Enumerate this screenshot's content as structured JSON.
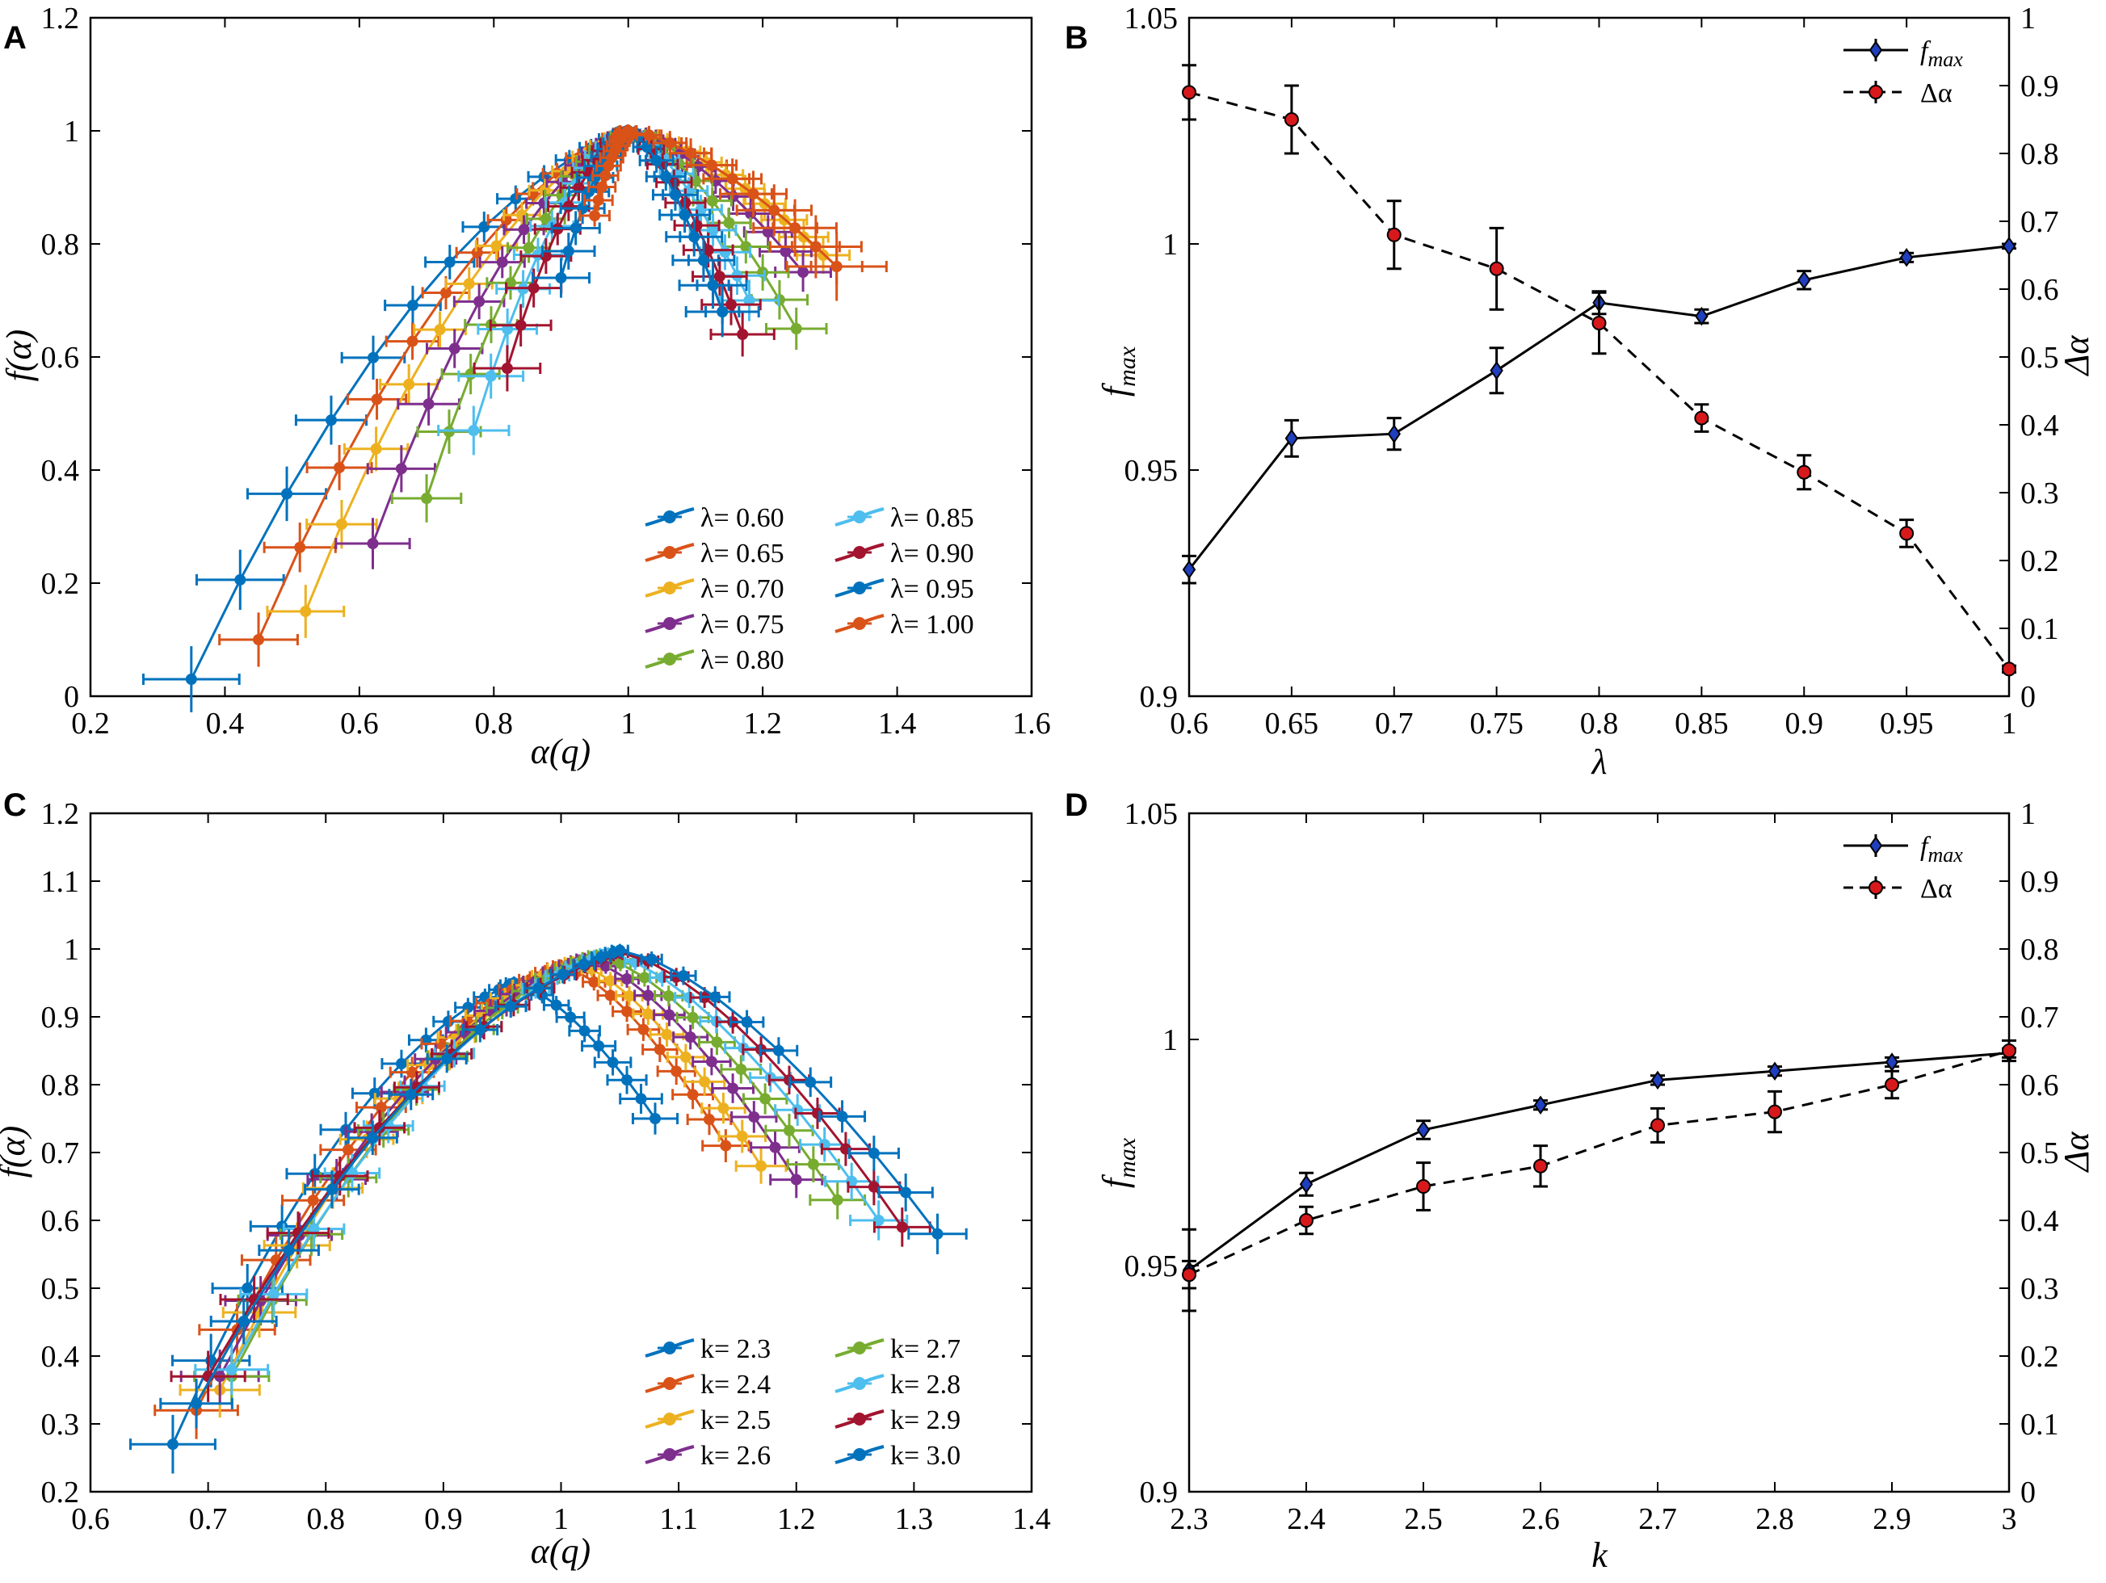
{
  "chart_data": [
    {
      "panel": "A",
      "type": "line",
      "xlabel": "α(q)",
      "ylabel": "f(α)",
      "xlim": [
        0.2,
        1.6
      ],
      "ylim": [
        0,
        1.2
      ],
      "xticks": [
        "0.2",
        "0.4",
        "0.6",
        "0.8",
        "1",
        "1.2",
        "1.4",
        "1.6"
      ],
      "yticks": [
        "0",
        "0.2",
        "0.4",
        "0.6",
        "0.8",
        "1",
        "1.2"
      ],
      "legend_position": "bottom-right",
      "series": [
        {
          "name": "λ= 0.60",
          "color": "#0072BD",
          "alpha_min": 0.35,
          "alpha_peak": 1.0,
          "alpha_max": 1.14,
          "f_left": 0.03,
          "f_right": 0.68
        },
        {
          "name": "λ= 0.65",
          "color": "#D95319",
          "alpha_min": 0.45,
          "alpha_peak": 1.0,
          "alpha_max": 1.31,
          "f_left": 0.1,
          "f_right": 0.76
        },
        {
          "name": "λ= 0.70",
          "color": "#EDB120",
          "alpha_min": 0.52,
          "alpha_peak": 1.0,
          "alpha_max": 1.29,
          "f_left": 0.15,
          "f_right": 0.78
        },
        {
          "name": "λ= 0.75",
          "color": "#7E2F8E",
          "alpha_min": 0.62,
          "alpha_peak": 1.0,
          "alpha_max": 1.26,
          "f_left": 0.27,
          "f_right": 0.75
        },
        {
          "name": "λ= 0.80",
          "color": "#77AC30",
          "alpha_min": 0.7,
          "alpha_peak": 1.0,
          "alpha_max": 1.25,
          "f_left": 0.35,
          "f_right": 0.65
        },
        {
          "name": "λ= 0.85",
          "color": "#4DBEEE",
          "alpha_min": 0.77,
          "alpha_peak": 1.0,
          "alpha_max": 1.18,
          "f_left": 0.47,
          "f_right": 0.7
        },
        {
          "name": "λ= 0.90",
          "color": "#A2142F",
          "alpha_min": 0.82,
          "alpha_peak": 1.0,
          "alpha_max": 1.17,
          "f_left": 0.58,
          "f_right": 0.64
        },
        {
          "name": "λ= 0.95",
          "color": "#0072BD",
          "alpha_min": 0.9,
          "alpha_peak": 1.0,
          "alpha_max": 1.14,
          "f_left": 0.74,
          "f_right": 0.68
        },
        {
          "name": "λ= 1.00",
          "color": "#D95319",
          "alpha_min": 0.95,
          "alpha_peak": 1.0,
          "alpha_max": 1.31,
          "f_left": 0.85,
          "f_right": 0.76
        }
      ]
    },
    {
      "panel": "B",
      "type": "line",
      "xlabel": "λ",
      "ylabel": "f_max",
      "ylabel_right": "Δα",
      "x": [
        0.6,
        0.65,
        0.7,
        0.75,
        0.8,
        0.85,
        0.9,
        0.95,
        1.0
      ],
      "xlim": [
        0.6,
        1.0
      ],
      "ylim": [
        0.9,
        1.05
      ],
      "ylim_right": [
        0,
        1
      ],
      "xticks": [
        "0.6",
        "0.65",
        "0.7",
        "0.75",
        "0.8",
        "0.85",
        "0.9",
        "0.95",
        "1"
      ],
      "yticks": [
        "0.9",
        "0.95",
        "1",
        "1.05"
      ],
      "yticks_right": [
        "0",
        "0.1",
        "0.2",
        "0.3",
        "0.4",
        "0.5",
        "0.6",
        "0.7",
        "0.8",
        "0.9",
        "1"
      ],
      "series": [
        {
          "name": "f",
          "sub": "max",
          "axis": "left",
          "style": "solid",
          "marker_color": "#1F3FBF",
          "values": [
            0.928,
            0.957,
            0.958,
            0.972,
            0.987,
            0.984,
            0.992,
            0.997,
            0.9995
          ],
          "errors": [
            0.003,
            0.004,
            0.0035,
            0.005,
            0.0025,
            0.0015,
            0.002,
            0.001,
            0.0005
          ]
        },
        {
          "name": "Δα",
          "axis": "right",
          "style": "dashed",
          "marker_color": "#D7191C",
          "values": [
            0.89,
            0.85,
            0.68,
            0.63,
            0.55,
            0.41,
            0.33,
            0.24,
            0.04
          ],
          "errors": [
            0.04,
            0.05,
            0.05,
            0.06,
            0.045,
            0.02,
            0.025,
            0.02,
            0.005
          ]
        }
      ]
    },
    {
      "panel": "C",
      "type": "line",
      "xlabel": "α(q)",
      "ylabel": "f(α)",
      "xlim": [
        0.6,
        1.4
      ],
      "ylim": [
        0.2,
        1.2
      ],
      "xticks": [
        "0.6",
        "0.7",
        "0.8",
        "0.9",
        "1",
        "1.1",
        "1.2",
        "1.3",
        "1.4"
      ],
      "yticks": [
        "0.2",
        "0.3",
        "0.4",
        "0.5",
        "0.6",
        "0.7",
        "0.8",
        "0.9",
        "1",
        "1.1",
        "1.2"
      ],
      "legend_position": "bottom-right",
      "series": [
        {
          "name": "k= 2.3",
          "color": "#0072BD",
          "alpha_min": 0.67,
          "alpha_peak": 0.96,
          "f_peak": 0.95,
          "alpha_max": 1.08,
          "f_left": 0.27,
          "f_right": 0.75
        },
        {
          "name": "k= 2.4",
          "color": "#D95319",
          "alpha_min": 0.69,
          "alpha_peak": 1.0,
          "f_peak": 0.975,
          "alpha_max": 1.14,
          "f_left": 0.32,
          "f_right": 0.71
        },
        {
          "name": "k= 2.5",
          "color": "#EDB120",
          "alpha_min": 0.71,
          "alpha_peak": 1.01,
          "f_peak": 0.98,
          "alpha_max": 1.17,
          "f_left": 0.35,
          "f_right": 0.68
        },
        {
          "name": "k= 2.6",
          "color": "#7E2F8E",
          "alpha_min": 0.71,
          "alpha_peak": 1.02,
          "f_peak": 0.985,
          "alpha_max": 1.2,
          "f_left": 0.37,
          "f_right": 0.66
        },
        {
          "name": "k= 2.7",
          "color": "#77AC30",
          "alpha_min": 0.72,
          "alpha_peak": 1.03,
          "f_peak": 0.99,
          "alpha_max": 1.235,
          "f_left": 0.37,
          "f_right": 0.63
        },
        {
          "name": "k= 2.8",
          "color": "#4DBEEE",
          "alpha_min": 0.72,
          "alpha_peak": 1.04,
          "f_peak": 0.993,
          "alpha_max": 1.27,
          "f_left": 0.38,
          "f_right": 0.6
        },
        {
          "name": "k= 2.9",
          "color": "#A2142F",
          "alpha_min": 0.7,
          "alpha_peak": 1.05,
          "f_peak": 0.995,
          "alpha_max": 1.29,
          "f_left": 0.37,
          "f_right": 0.59
        },
        {
          "name": "k= 3.0",
          "color": "#0072BD",
          "alpha_min": 0.69,
          "alpha_peak": 1.05,
          "f_peak": 0.998,
          "alpha_max": 1.32,
          "f_left": 0.33,
          "f_right": 0.58
        }
      ]
    },
    {
      "panel": "D",
      "type": "line",
      "xlabel": "k",
      "ylabel": "f_max",
      "ylabel_right": "Δα",
      "x": [
        2.3,
        2.4,
        2.5,
        2.6,
        2.7,
        2.8,
        2.9,
        3.0
      ],
      "xlim": [
        2.3,
        3.0
      ],
      "ylim": [
        0.9,
        1.05
      ],
      "ylim_right": [
        0,
        1
      ],
      "xticks": [
        "2.3",
        "2.4",
        "2.5",
        "2.6",
        "2.7",
        "2.8",
        "2.9",
        "3"
      ],
      "yticks": [
        "0.9",
        "0.95",
        "1",
        "1.05"
      ],
      "yticks_right": [
        "0",
        "0.1",
        "0.2",
        "0.3",
        "0.4",
        "0.5",
        "0.6",
        "0.7",
        "0.8",
        "0.9",
        "1"
      ],
      "series": [
        {
          "name": "f",
          "sub": "max",
          "axis": "left",
          "style": "solid",
          "marker_color": "#1F3FBF",
          "values": [
            0.949,
            0.968,
            0.98,
            0.9855,
            0.991,
            0.993,
            0.995,
            0.997
          ],
          "errors": [
            0.009,
            0.0025,
            0.002,
            0.001,
            0.001,
            0.001,
            0.001,
            0.001
          ]
        },
        {
          "name": "Δα",
          "axis": "right",
          "style": "dashed",
          "marker_color": "#D7191C",
          "values": [
            0.32,
            0.4,
            0.45,
            0.48,
            0.54,
            0.56,
            0.6,
            0.65
          ],
          "errors": [
            0.02,
            0.02,
            0.035,
            0.03,
            0.025,
            0.03,
            0.02,
            0.015
          ]
        }
      ]
    }
  ]
}
